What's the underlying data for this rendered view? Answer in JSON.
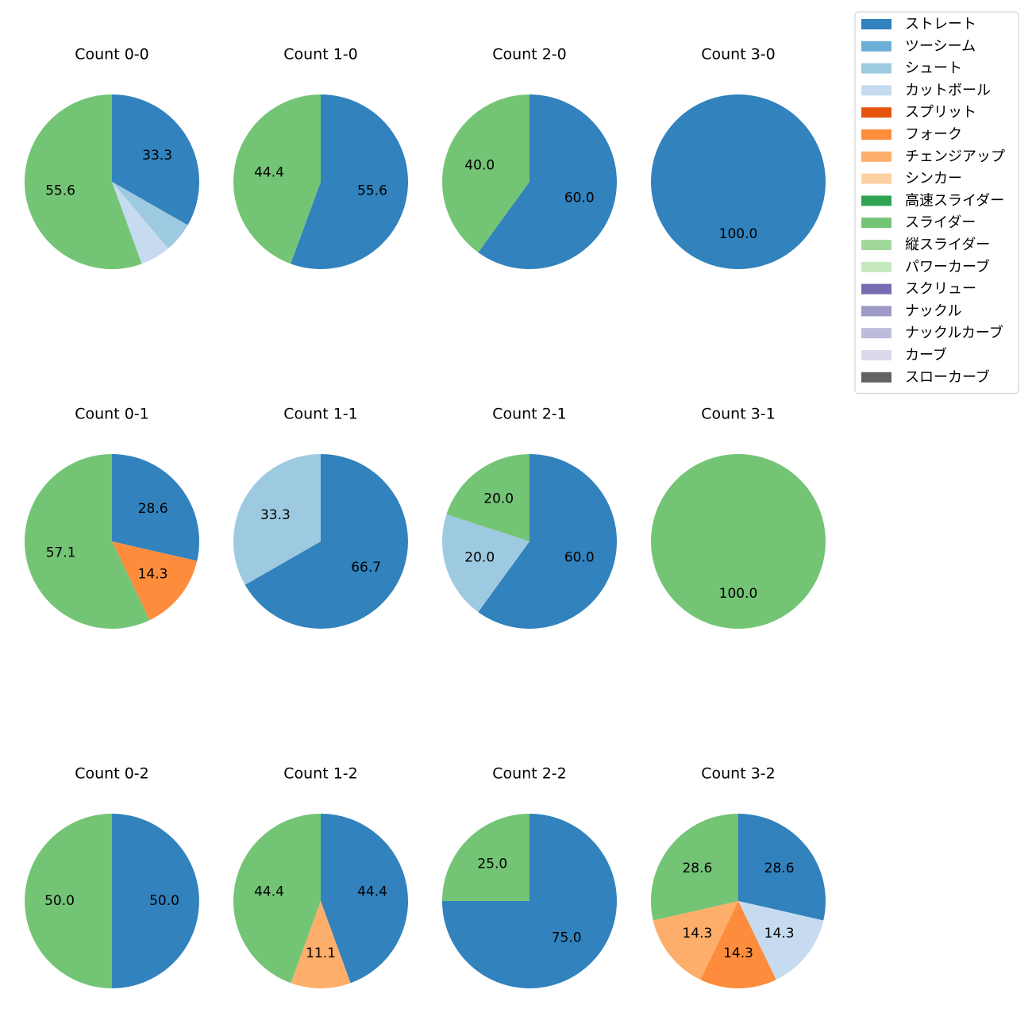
{
  "chart_data": [
    {
      "type": "pie",
      "title": "Count 0-0",
      "categories": [
        "ストレート",
        "シュート",
        "カットボール",
        "スライダー"
      ],
      "values": [
        33.3,
        5.6,
        5.6,
        55.6
      ],
      "value_labels": [
        "33.3",
        null,
        null,
        "55.6"
      ]
    },
    {
      "type": "pie",
      "title": "Count 1-0",
      "categories": [
        "ストレート",
        "スライダー"
      ],
      "values": [
        55.6,
        44.4
      ],
      "value_labels": [
        "55.6",
        "44.4"
      ]
    },
    {
      "type": "pie",
      "title": "Count 2-0",
      "categories": [
        "ストレート",
        "スライダー"
      ],
      "values": [
        60,
        40
      ],
      "value_labels": [
        "60.0",
        "40.0"
      ]
    },
    {
      "type": "pie",
      "title": "Count 3-0",
      "categories": [
        "ストレート"
      ],
      "values": [
        100
      ],
      "value_labels": [
        "100.0"
      ]
    },
    {
      "type": "pie",
      "title": "Count 0-1",
      "categories": [
        "ストレート",
        "フォーク",
        "スライダー"
      ],
      "values": [
        28.6,
        14.3,
        57.1
      ],
      "value_labels": [
        "28.6",
        "14.3",
        "57.1"
      ]
    },
    {
      "type": "pie",
      "title": "Count 1-1",
      "categories": [
        "ストレート",
        "シュート"
      ],
      "values": [
        66.7,
        33.3
      ],
      "value_labels": [
        "66.7",
        "33.3"
      ]
    },
    {
      "type": "pie",
      "title": "Count 2-1",
      "categories": [
        "ストレート",
        "シュート",
        "スライダー"
      ],
      "values": [
        60,
        20,
        20
      ],
      "value_labels": [
        "60.0",
        "20.0",
        "20.0"
      ]
    },
    {
      "type": "pie",
      "title": "Count 3-1",
      "categories": [
        "スライダー"
      ],
      "values": [
        100
      ],
      "value_labels": [
        "100.0"
      ]
    },
    {
      "type": "pie",
      "title": "Count 0-2",
      "categories": [
        "ストレート",
        "スライダー"
      ],
      "values": [
        50,
        50
      ],
      "value_labels": [
        "50.0",
        "50.0"
      ]
    },
    {
      "type": "pie",
      "title": "Count 1-2",
      "categories": [
        "ストレート",
        "チェンジアップ",
        "スライダー"
      ],
      "values": [
        44.4,
        11.1,
        44.4
      ],
      "value_labels": [
        "44.4",
        "11.1",
        "44.4"
      ]
    },
    {
      "type": "pie",
      "title": "Count 2-2",
      "categories": [
        "ストレート",
        "スライダー"
      ],
      "values": [
        75,
        25
      ],
      "value_labels": [
        "75.0",
        "25.0"
      ]
    },
    {
      "type": "pie",
      "title": "Count 3-2",
      "categories": [
        "ストレート",
        "カットボール",
        "フォーク",
        "チェンジアップ",
        "スライダー"
      ],
      "values": [
        28.6,
        14.3,
        14.3,
        14.3,
        28.6
      ],
      "value_labels": [
        "28.6",
        "14.3",
        "14.3",
        "14.3",
        "28.6"
      ]
    }
  ],
  "legend": {
    "position": "upper right",
    "entries": [
      {
        "name": "ストレート",
        "color": "#3182bd"
      },
      {
        "name": "ツーシーム",
        "color": "#6baed6"
      },
      {
        "name": "シュート",
        "color": "#9ecae1"
      },
      {
        "name": "カットボール",
        "color": "#c6dbef"
      },
      {
        "name": "スプリット",
        "color": "#e6550d"
      },
      {
        "name": "フォーク",
        "color": "#fd8d3c"
      },
      {
        "name": "チェンジアップ",
        "color": "#fdae6b"
      },
      {
        "name": "シンカー",
        "color": "#fdd0a2"
      },
      {
        "name": "高速スライダー",
        "color": "#31a354"
      },
      {
        "name": "スライダー",
        "color": "#74c476"
      },
      {
        "name": "縦スライダー",
        "color": "#a1d99b"
      },
      {
        "name": "パワーカーブ",
        "color": "#c7e9c0"
      },
      {
        "name": "スクリュー",
        "color": "#756bb1"
      },
      {
        "name": "ナックル",
        "color": "#9e9ac8"
      },
      {
        "name": "ナックルカーブ",
        "color": "#bcbddc"
      },
      {
        "name": "カーブ",
        "color": "#dadaeb"
      },
      {
        "name": "スローカーブ",
        "color": "#636363"
      }
    ]
  }
}
